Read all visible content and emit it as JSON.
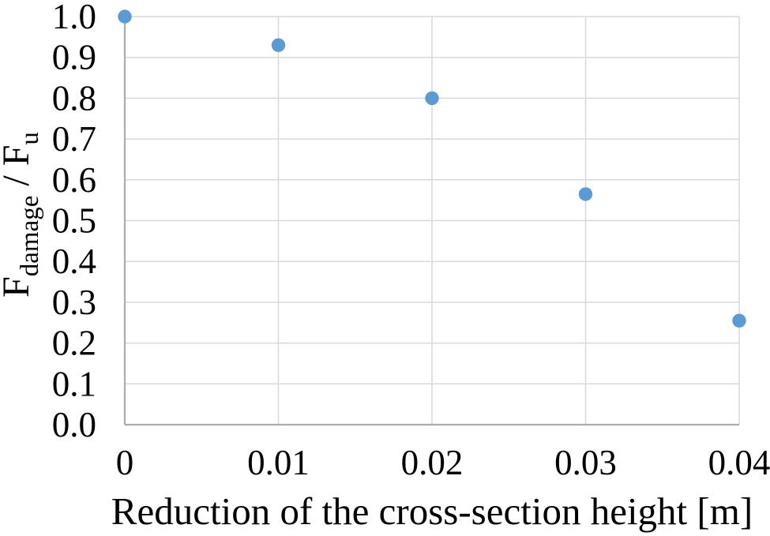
{
  "chart_data": {
    "type": "scatter",
    "title": "",
    "xlabel": "Reduction of the cross-section height [m]",
    "ylabel": "F_damage / F_u",
    "ylabel_parts": [
      {
        "text": "F",
        "sub": false
      },
      {
        "text": "damage",
        "sub": true
      },
      {
        "text": " / F",
        "sub": false
      },
      {
        "text": "u",
        "sub": true
      }
    ],
    "points": [
      {
        "x": 0,
        "y": 1.0
      },
      {
        "x": 0.01,
        "y": 0.93
      },
      {
        "x": 0.02,
        "y": 0.8
      },
      {
        "x": 0.03,
        "y": 0.565
      },
      {
        "x": 0.04,
        "y": 0.255
      }
    ],
    "xlim": [
      0,
      0.04
    ],
    "ylim": [
      0.0,
      1.0
    ],
    "x_ticks": [
      {
        "value": 0,
        "label": "0"
      },
      {
        "value": 0.01,
        "label": "0.01"
      },
      {
        "value": 0.02,
        "label": "0.02"
      },
      {
        "value": 0.03,
        "label": "0.03"
      },
      {
        "value": 0.04,
        "label": "0.04"
      }
    ],
    "y_ticks": [
      {
        "value": 0.0,
        "label": "0.0"
      },
      {
        "value": 0.1,
        "label": "0.1"
      },
      {
        "value": 0.2,
        "label": "0.2"
      },
      {
        "value": 0.3,
        "label": "0.3"
      },
      {
        "value": 0.4,
        "label": "0.4"
      },
      {
        "value": 0.5,
        "label": "0.5"
      },
      {
        "value": 0.6,
        "label": "0.6"
      },
      {
        "value": 0.7,
        "label": "0.7"
      },
      {
        "value": 0.8,
        "label": "0.8"
      },
      {
        "value": 0.9,
        "label": "0.9"
      },
      {
        "value": 1.0,
        "label": "1.0"
      }
    ],
    "grid": true,
    "legend": false,
    "colors": {
      "marker": "#5B9BD5",
      "gridline": "#D9D9D9",
      "axis_line": "#ACACAC",
      "text": "#000000",
      "background": "#FFFFFF"
    }
  }
}
